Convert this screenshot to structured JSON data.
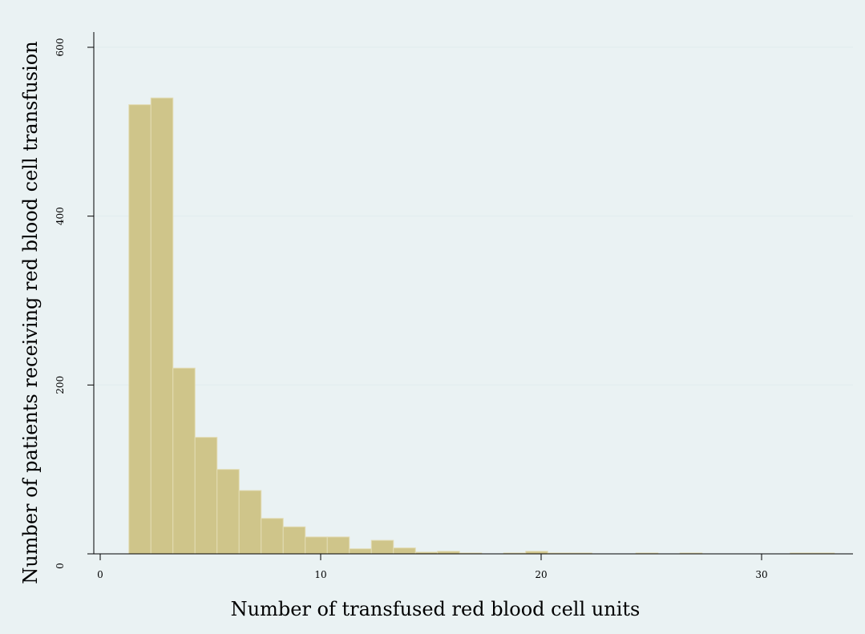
{
  "chart_data": {
    "type": "bar",
    "title": "",
    "xlabel": "Number of transfused red blood cell units",
    "ylabel": "Number of patients receiving red blood cell transfusion",
    "xlim": [
      0,
      34
    ],
    "ylim": [
      0,
      600
    ],
    "x_ticks": [
      0,
      10,
      20,
      30
    ],
    "y_ticks": [
      0,
      200,
      400,
      600
    ],
    "grid": true,
    "legend": "none",
    "bin_width": 1,
    "bins": [
      {
        "start": 1.3,
        "value": 532
      },
      {
        "start": 2.3,
        "value": 540
      },
      {
        "start": 3.3,
        "value": 220
      },
      {
        "start": 4.3,
        "value": 138
      },
      {
        "start": 5.3,
        "value": 100
      },
      {
        "start": 6.3,
        "value": 75
      },
      {
        "start": 7.3,
        "value": 42
      },
      {
        "start": 8.3,
        "value": 32
      },
      {
        "start": 9.3,
        "value": 20
      },
      {
        "start": 10.3,
        "value": 20
      },
      {
        "start": 11.3,
        "value": 6
      },
      {
        "start": 12.3,
        "value": 16
      },
      {
        "start": 13.3,
        "value": 7
      },
      {
        "start": 14.3,
        "value": 2
      },
      {
        "start": 15.3,
        "value": 3
      },
      {
        "start": 16.3,
        "value": 1
      },
      {
        "start": 18.3,
        "value": 1
      },
      {
        "start": 19.3,
        "value": 3
      },
      {
        "start": 20.3,
        "value": 1
      },
      {
        "start": 21.3,
        "value": 1
      },
      {
        "start": 24.3,
        "value": 1
      },
      {
        "start": 26.3,
        "value": 1
      },
      {
        "start": 31.3,
        "value": 1
      },
      {
        "start": 32.3,
        "value": 1
      }
    ],
    "colors": {
      "background": "#eaf2f3",
      "plot_area": "#ffffff",
      "bar_fill": "#cfc58a",
      "bar_edge": "#e2dcb4",
      "grid": "#e3eef0",
      "axis": "#000000"
    }
  }
}
